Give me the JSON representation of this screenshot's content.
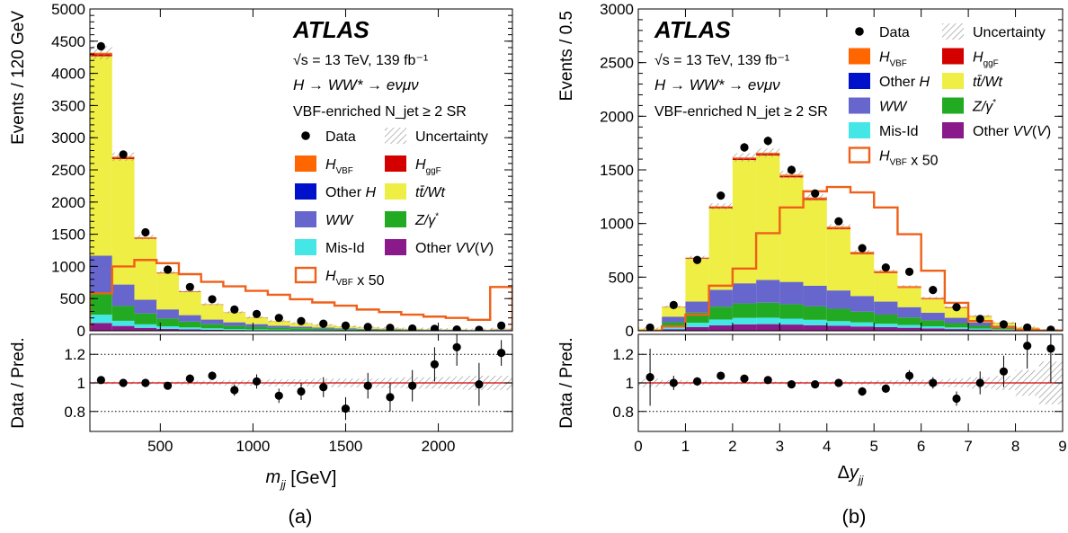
{
  "figure": {
    "panel_labels": [
      "(a)",
      "(b)"
    ]
  },
  "legend_entries": [
    {
      "key": "data",
      "label": "Data",
      "color": "#000000",
      "style": "marker"
    },
    {
      "key": "unc",
      "label": "Uncertainty",
      "color": "#8c8c8c",
      "style": "hatch"
    },
    {
      "key": "hvbf",
      "label": "H_VBF",
      "color": "#ff6600",
      "style": "fill"
    },
    {
      "key": "hggf",
      "label": "H_ggF",
      "color": "#d40000",
      "style": "fill"
    },
    {
      "key": "otherh",
      "label": "Other H",
      "color": "#0011cc",
      "style": "fill"
    },
    {
      "key": "top",
      "label": "tt̄/Wt",
      "color": "#eeee44",
      "style": "fill"
    },
    {
      "key": "ww",
      "label": "WW",
      "color": "#6666cc",
      "style": "fill"
    },
    {
      "key": "zg",
      "label": "Z/γ*",
      "color": "#22aa22",
      "style": "fill"
    },
    {
      "key": "misid",
      "label": "Mis-Id",
      "color": "#44e6e6",
      "style": "fill"
    },
    {
      "key": "othervv",
      "label": "Other VV(V)",
      "color": "#8a1a8a",
      "style": "fill"
    },
    {
      "key": "hvbf50",
      "label": "H_VBF x 50",
      "color": "#f06018",
      "style": "outline"
    }
  ],
  "chart_data": [
    {
      "type": "bar",
      "stacked": true,
      "panel": "(a)",
      "atlas_label": "ATLAS",
      "energy_label": "√s = 13 TeV, 139 fb⁻¹",
      "process_label": "H → WW* → eνμν",
      "region_label": "VBF-enriched N_jet ≥ 2 SR",
      "xlabel": "m_jj [GeV]",
      "ylabel": "Events / 120 GeV",
      "ratio_ylabel": "Data / Pred.",
      "xlim": [
        120,
        2400
      ],
      "ylim": [
        0,
        5000
      ],
      "ratio_ylim": [
        0.66,
        1.34
      ],
      "xticks": [
        500,
        1000,
        1500,
        2000
      ],
      "yticks": [
        0,
        500,
        1000,
        1500,
        2000,
        2500,
        3000,
        3500,
        4000,
        4500,
        5000
      ],
      "ratio_yticks": [
        0.8,
        1,
        1.2
      ],
      "bin_edges": [
        120,
        240,
        360,
        480,
        600,
        720,
        840,
        960,
        1080,
        1200,
        1320,
        1440,
        1560,
        1680,
        1800,
        1920,
        2040,
        2160,
        2280,
        2400
      ],
      "series": [
        {
          "name": "Other VV(V)",
          "key": "othervv",
          "values": [
            120,
            75,
            45,
            30,
            22,
            16,
            12,
            10,
            8,
            6,
            5,
            4,
            3,
            3,
            2,
            2,
            2,
            1,
            2
          ]
        },
        {
          "name": "Mis-Id",
          "key": "misid",
          "values": [
            130,
            80,
            55,
            40,
            30,
            22,
            16,
            12,
            9,
            7,
            5,
            4,
            3,
            3,
            2,
            2,
            2,
            1,
            2
          ]
        },
        {
          "name": "Z/γ*",
          "key": "zg",
          "values": [
            350,
            230,
            170,
            120,
            90,
            65,
            50,
            40,
            30,
            25,
            20,
            15,
            12,
            10,
            8,
            6,
            5,
            4,
            6
          ]
        },
        {
          "name": "WW",
          "key": "ww",
          "values": [
            560,
            330,
            210,
            140,
            100,
            70,
            52,
            40,
            32,
            26,
            21,
            16,
            13,
            10,
            8,
            7,
            6,
            5,
            8
          ]
        },
        {
          "name": "Other H",
          "key": "otherh",
          "values": [
            5,
            3,
            2,
            2,
            1,
            1,
            1,
            1,
            0,
            0,
            0,
            0,
            0,
            0,
            0,
            0,
            0,
            0,
            0
          ]
        },
        {
          "name": "tt̄/Wt",
          "key": "top",
          "values": [
            3100,
            1950,
            950,
            560,
            360,
            230,
            150,
            100,
            70,
            50,
            36,
            26,
            20,
            15,
            11,
            8,
            7,
            5,
            8
          ]
        },
        {
          "name": "H_ggF",
          "key": "hggf",
          "values": [
            30,
            20,
            10,
            6,
            4,
            3,
            2,
            2,
            1,
            1,
            1,
            1,
            1,
            0,
            0,
            0,
            0,
            0,
            1
          ]
        },
        {
          "name": "H_VBF",
          "key": "hvbf",
          "values": [
            25,
            17,
            12,
            8,
            6,
            5,
            4,
            3,
            3,
            2,
            2,
            2,
            1,
            1,
            1,
            1,
            1,
            1,
            3
          ]
        }
      ],
      "signal_x50": {
        "name": "H_VBF x 50",
        "values": [
          580,
          1000,
          1100,
          1050,
          880,
          760,
          690,
          620,
          560,
          490,
          440,
          390,
          330,
          290,
          250,
          220,
          200,
          170,
          680
        ]
      },
      "data": {
        "name": "Data",
        "values": [
          4420,
          2740,
          1530,
          950,
          680,
          490,
          330,
          260,
          200,
          150,
          110,
          80,
          60,
          45,
          35,
          30,
          20,
          15,
          80
        ]
      },
      "ratio": {
        "values": [
          1.02,
          1.0,
          1.0,
          0.98,
          1.03,
          1.05,
          0.95,
          1.01,
          0.91,
          0.94,
          0.97,
          0.82,
          0.98,
          0.9,
          0.98,
          1.13,
          1.25,
          0.99,
          1.21
        ],
        "errors": [
          0.02,
          0.02,
          0.02,
          0.02,
          0.03,
          0.03,
          0.04,
          0.05,
          0.05,
          0.06,
          0.07,
          0.08,
          0.09,
          0.1,
          0.11,
          0.12,
          0.13,
          0.15,
          0.09
        ]
      },
      "ratio_unc_halfwidth": [
        0.01,
        0.01,
        0.01,
        0.01,
        0.015,
        0.015,
        0.02,
        0.02,
        0.025,
        0.025,
        0.03,
        0.03,
        0.03,
        0.035,
        0.04,
        0.04,
        0.045,
        0.05,
        0.05
      ],
      "ratio_gridlines": [
        0.8,
        1.2
      ]
    },
    {
      "type": "bar",
      "stacked": true,
      "panel": "(b)",
      "atlas_label": "ATLAS",
      "energy_label": "√s = 13 TeV, 139 fb⁻¹",
      "process_label": "H → WW* → eνμν",
      "region_label": "VBF-enriched N_jet ≥ 2 SR",
      "xlabel": "Δy_jj",
      "ylabel": "Events / 0.5",
      "ratio_ylabel": "Data / Pred.",
      "xlim": [
        0,
        9
      ],
      "ylim": [
        0,
        3000
      ],
      "ratio_ylim": [
        0.66,
        1.34
      ],
      "xticks": [
        0,
        1,
        2,
        3,
        4,
        5,
        6,
        7,
        8,
        9
      ],
      "yticks": [
        0,
        500,
        1000,
        1500,
        2000,
        2500,
        3000
      ],
      "ratio_yticks": [
        0.8,
        1,
        1.2
      ],
      "bin_edges": [
        0,
        0.5,
        1,
        1.5,
        2,
        2.5,
        3,
        3.5,
        4,
        4.5,
        5,
        5.5,
        6,
        6.5,
        7,
        7.5,
        8,
        8.5,
        9
      ],
      "series": [
        {
          "name": "Other VV(V)",
          "key": "othervv",
          "values": [
            2,
            15,
            35,
            50,
            60,
            62,
            58,
            52,
            46,
            40,
            34,
            28,
            22,
            16,
            11,
            7,
            3,
            1
          ]
        },
        {
          "name": "Mis-Id",
          "key": "misid",
          "values": [
            2,
            20,
            40,
            55,
            60,
            60,
            55,
            50,
            44,
            38,
            32,
            26,
            20,
            15,
            10,
            6,
            3,
            1
          ]
        },
        {
          "name": "Z/γ*",
          "key": "zg",
          "values": [
            3,
            45,
            95,
            120,
            135,
            140,
            135,
            125,
            115,
            100,
            85,
            70,
            55,
            40,
            25,
            15,
            7,
            2
          ]
        },
        {
          "name": "WW",
          "key": "ww",
          "values": [
            3,
            50,
            100,
            155,
            185,
            210,
            205,
            190,
            170,
            145,
            120,
            95,
            70,
            50,
            30,
            18,
            8,
            2
          ]
        },
        {
          "name": "Other H",
          "key": "otherh",
          "values": [
            0,
            1,
            2,
            2,
            2,
            2,
            2,
            2,
            1,
            1,
            1,
            1,
            1,
            0,
            0,
            0,
            0,
            0
          ]
        },
        {
          "name": "tt̄/Wt",
          "key": "top",
          "values": [
            10,
            90,
            400,
            760,
            1150,
            1160,
            975,
            800,
            570,
            390,
            265,
            180,
            125,
            90,
            55,
            25,
            10,
            2
          ]
        },
        {
          "name": "H_ggF",
          "key": "hggf",
          "values": [
            0,
            2,
            6,
            10,
            14,
            14,
            12,
            10,
            8,
            6,
            5,
            4,
            3,
            2,
            1,
            1,
            0,
            0
          ]
        },
        {
          "name": "H_VBF",
          "key": "hvbf",
          "values": [
            0,
            2,
            4,
            8,
            10,
            12,
            13,
            14,
            16,
            16,
            15,
            12,
            10,
            8,
            6,
            3,
            1,
            0
          ]
        }
      ],
      "signal_x50": {
        "name": "H_VBF x 50",
        "values": [
          0,
          40,
          150,
          420,
          580,
          910,
          1150,
          1300,
          1340,
          1290,
          1150,
          900,
          560,
          260,
          90,
          30,
          10,
          2
        ]
      },
      "data": {
        "name": "Data",
        "values": [
          30,
          240,
          660,
          1260,
          1710,
          1770,
          1500,
          1280,
          1020,
          770,
          590,
          550,
          380,
          220,
          110,
          60,
          30,
          10
        ]
      },
      "ratio": {
        "values": [
          1.04,
          1.0,
          1.01,
          1.05,
          1.03,
          1.02,
          0.99,
          0.99,
          1.0,
          0.94,
          0.96,
          1.05,
          1.0,
          0.89,
          1.0,
          1.08,
          1.26,
          1.24
        ],
        "errors": [
          0.2,
          0.05,
          0.03,
          0.02,
          0.02,
          0.02,
          0.02,
          0.02,
          0.02,
          0.03,
          0.03,
          0.04,
          0.04,
          0.05,
          0.08,
          0.11,
          0.16,
          0.24
        ]
      },
      "ratio_unc_halfwidth": [
        0.03,
        0.02,
        0.015,
        0.01,
        0.01,
        0.01,
        0.01,
        0.01,
        0.012,
        0.015,
        0.018,
        0.02,
        0.022,
        0.03,
        0.04,
        0.05,
        0.09,
        0.15
      ],
      "ratio_gridlines": [
        0.8,
        1.2
      ]
    }
  ]
}
